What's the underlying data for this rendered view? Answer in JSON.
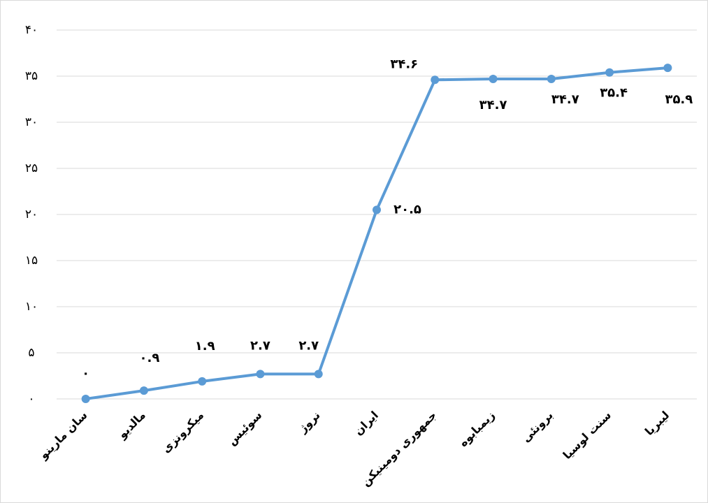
{
  "chart_data": {
    "type": "line",
    "categories": [
      "سان مارینو",
      "مالدیو",
      "میکرونزی",
      "سوئیس",
      "نروژ",
      "ایران",
      "جمهوری دومینیکن",
      "زیمبابوه",
      "برونئی",
      "سنت لوسیا",
      "لیبریا"
    ],
    "values": [
      0,
      0.9,
      1.9,
      2.7,
      2.7,
      20.5,
      34.6,
      34.7,
      34.7,
      35.4,
      35.9
    ],
    "value_labels": [
      "۰",
      "۰.۹",
      "۱.۹",
      "۲.۷",
      "۲.۷",
      "۲۰.۵",
      "۳۴.۶",
      "۳۴.۷",
      "۳۴.۷",
      "۳۵.۴",
      "۳۵.۹"
    ],
    "color": "#5b9bd5",
    "ylim": [
      0,
      40
    ],
    "yticks": [
      {
        "value": 0,
        "label": "۰"
      },
      {
        "value": 5,
        "label": "۵"
      },
      {
        "value": 10,
        "label": "۱۰"
      },
      {
        "value": 15,
        "label": "۱۵"
      },
      {
        "value": 20,
        "label": "۲۰"
      },
      {
        "value": 25,
        "label": "۲۵"
      },
      {
        "value": 30,
        "label": "۳۰"
      },
      {
        "value": 35,
        "label": "۳۵"
      },
      {
        "value": 40,
        "label": "۴۰"
      }
    ],
    "grid": true
  }
}
